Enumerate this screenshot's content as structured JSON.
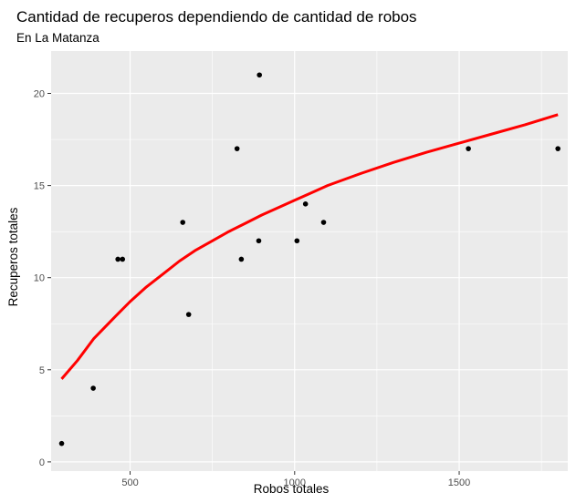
{
  "chart_data": {
    "type": "scatter",
    "title": "Cantidad de recuperos dependiendo de cantidad de robos",
    "subtitle": "En La Matanza",
    "xlabel": "Robos totales",
    "ylabel": "Recuperos totales",
    "xlim": [
      260,
      1830
    ],
    "ylim": [
      -0.5,
      22.3
    ],
    "x_ticks": [
      500,
      1000,
      1500
    ],
    "x_tick_labels": [
      "500",
      "1000",
      "1500"
    ],
    "y_ticks": [
      0,
      5,
      10,
      15,
      20
    ],
    "y_tick_labels": [
      "0",
      "5",
      "10",
      "15",
      "20"
    ],
    "grid": true,
    "legend": "none",
    "background_color": "#ebebeb",
    "grid_color": "#ffffff",
    "point_color": "#000000",
    "line_color": "#ff0000",
    "series": [
      {
        "type": "scatter",
        "points": [
          [
            292,
            1
          ],
          [
            388,
            4
          ],
          [
            463,
            11
          ],
          [
            477,
            11
          ],
          [
            660,
            13
          ],
          [
            678,
            8
          ],
          [
            825,
            17
          ],
          [
            838,
            11
          ],
          [
            891,
            12
          ],
          [
            893,
            21
          ],
          [
            1007,
            12
          ],
          [
            1033,
            14
          ],
          [
            1088,
            13
          ],
          [
            1528,
            17
          ],
          [
            1800,
            17
          ]
        ]
      },
      {
        "type": "line",
        "points": [
          [
            292,
            4.5
          ],
          [
            340,
            5.5
          ],
          [
            390,
            6.7
          ],
          [
            450,
            7.8
          ],
          [
            500,
            8.7
          ],
          [
            550,
            9.5
          ],
          [
            600,
            10.2
          ],
          [
            650,
            10.9
          ],
          [
            700,
            11.5
          ],
          [
            750,
            12.0
          ],
          [
            800,
            12.5
          ],
          [
            850,
            12.95
          ],
          [
            900,
            13.4
          ],
          [
            950,
            13.8
          ],
          [
            1000,
            14.2
          ],
          [
            1050,
            14.6
          ],
          [
            1100,
            15.0
          ],
          [
            1200,
            15.65
          ],
          [
            1300,
            16.25
          ],
          [
            1400,
            16.8
          ],
          [
            1500,
            17.3
          ],
          [
            1600,
            17.8
          ],
          [
            1700,
            18.3
          ],
          [
            1800,
            18.85
          ]
        ]
      }
    ]
  }
}
